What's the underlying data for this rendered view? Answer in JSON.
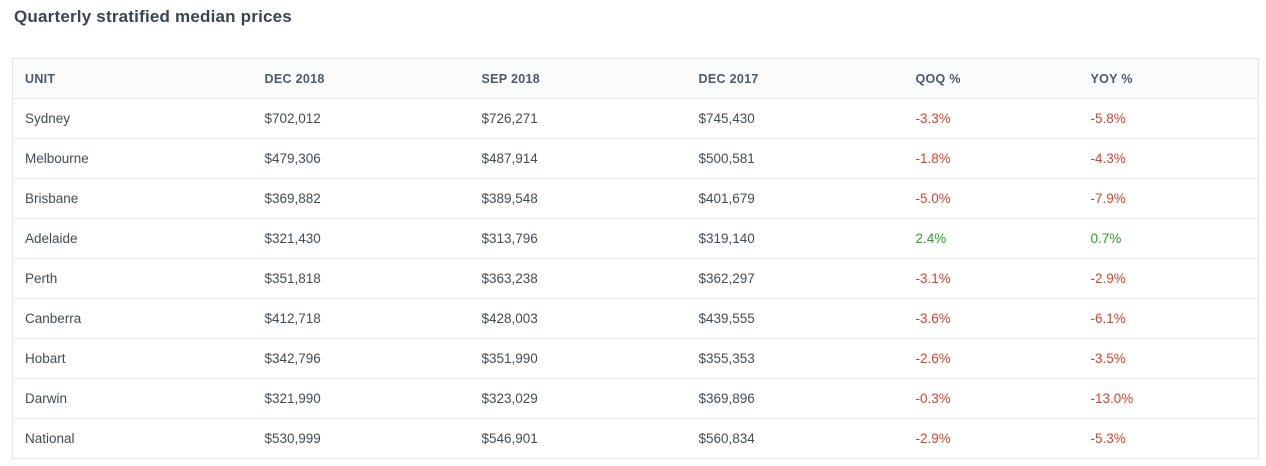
{
  "page_title": "Quarterly stratified median prices",
  "colors": {
    "negative": "#e03e2d",
    "positive": "#28a228",
    "title": "#3b4551",
    "header_text": "#4d5a67",
    "body_text": "#414d56"
  },
  "table": {
    "columns": [
      {
        "key": "unit",
        "label": "UNIT"
      },
      {
        "key": "dec_2018",
        "label": "DEC 2018"
      },
      {
        "key": "sep_2018",
        "label": "SEP 2018"
      },
      {
        "key": "dec_2017",
        "label": "DEC 2017"
      },
      {
        "key": "qoq",
        "label": "QOQ %"
      },
      {
        "key": "yoy",
        "label": "YOY %"
      }
    ],
    "percent_columns": [
      "qoq",
      "yoy"
    ],
    "rows": [
      {
        "unit": "Sydney",
        "dec_2018": "$702,012",
        "sep_2018": "$726,271",
        "dec_2017": "$745,430",
        "qoq": "-3.3%",
        "yoy": "-5.8%"
      },
      {
        "unit": "Melbourne",
        "dec_2018": "$479,306",
        "sep_2018": "$487,914",
        "dec_2017": "$500,581",
        "qoq": "-1.8%",
        "yoy": "-4.3%"
      },
      {
        "unit": "Brisbane",
        "dec_2018": "$369,882",
        "sep_2018": "$389,548",
        "dec_2017": "$401,679",
        "qoq": "-5.0%",
        "yoy": "-7.9%"
      },
      {
        "unit": "Adelaide",
        "dec_2018": "$321,430",
        "sep_2018": "$313,796",
        "dec_2017": "$319,140",
        "qoq": "2.4%",
        "yoy": "0.7%"
      },
      {
        "unit": "Perth",
        "dec_2018": "$351,818",
        "sep_2018": "$363,238",
        "dec_2017": "$362,297",
        "qoq": "-3.1%",
        "yoy": "-2.9%"
      },
      {
        "unit": "Canberra",
        "dec_2018": "$412,718",
        "sep_2018": "$428,003",
        "dec_2017": "$439,555",
        "qoq": "-3.6%",
        "yoy": "-6.1%"
      },
      {
        "unit": "Hobart",
        "dec_2018": "$342,796",
        "sep_2018": "$351,990",
        "dec_2017": "$355,353",
        "qoq": "-2.6%",
        "yoy": "-3.5%"
      },
      {
        "unit": "Darwin",
        "dec_2018": "$321,990",
        "sep_2018": "$323,029",
        "dec_2017": "$369,896",
        "qoq": "-0.3%",
        "yoy": "-13.0%"
      },
      {
        "unit": "National",
        "dec_2018": "$530,999",
        "sep_2018": "$546,901",
        "dec_2017": "$560,834",
        "qoq": "-2.9%",
        "yoy": "-5.3%"
      }
    ]
  }
}
